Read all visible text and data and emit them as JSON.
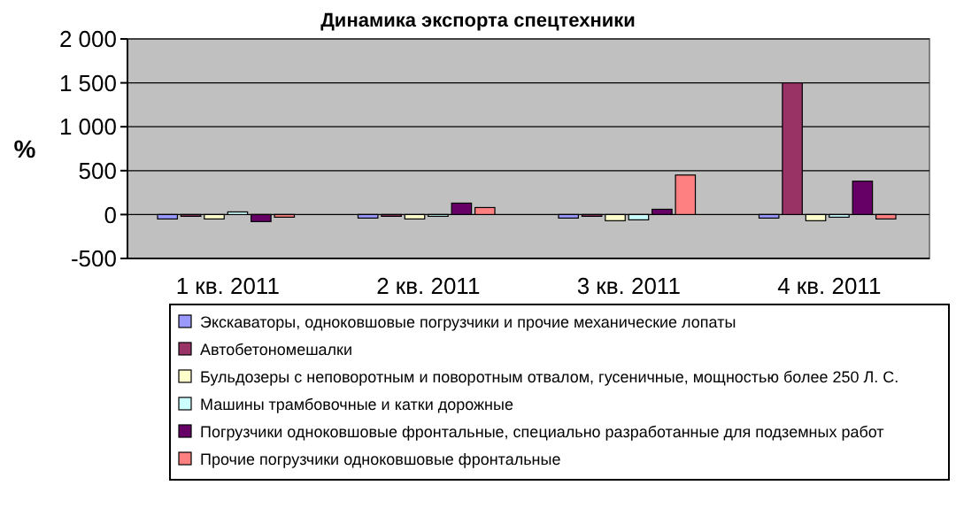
{
  "chart_data": {
    "type": "bar",
    "title": "Динамика экспорта спецтехники",
    "ylabel": "%",
    "categories": [
      "1 кв. 2011",
      "2 кв. 2011",
      "3 кв. 2011",
      "4 кв. 2011"
    ],
    "series": [
      {
        "name": "Экскаваторы, одноковшовые погрузчики и прочие механические лопаты",
        "color": "#9999ff",
        "values": [
          -50,
          -40,
          -40,
          -40
        ]
      },
      {
        "name": "Автобетономешалки",
        "color": "#993366",
        "values": [
          -10,
          0,
          -20,
          1500
        ]
      },
      {
        "name": "Бульдозеры с неповоротным и поворотным отвалом, гусеничные, мощностью более 250 Л. С.",
        "color": "#ffffcc",
        "values": [
          -50,
          -50,
          -70,
          -70
        ]
      },
      {
        "name": "Машины трамбовочные и катки дорожные",
        "color": "#ccffff",
        "values": [
          30,
          0,
          -60,
          -30
        ]
      },
      {
        "name": "Погрузчики одноковшовые фронтальные, специально разработанные для подземных работ",
        "color": "#660066",
        "values": [
          -80,
          130,
          60,
          380
        ]
      },
      {
        "name": "Прочие погрузчики одноковшовые фронтальные",
        "color": "#ff8080",
        "values": [
          -30,
          80,
          450,
          -50
        ]
      }
    ],
    "ylim": [
      -500,
      2000
    ],
    "yticks": [
      -500,
      0,
      {
        "value": 500,
        "label": "500"
      },
      {
        "value": 1000,
        "label": "1 000"
      },
      {
        "value": 1500,
        "label": "1 500"
      },
      {
        "value": 2000,
        "label": "2 000"
      }
    ],
    "grid": "y",
    "legend": "bottom"
  }
}
